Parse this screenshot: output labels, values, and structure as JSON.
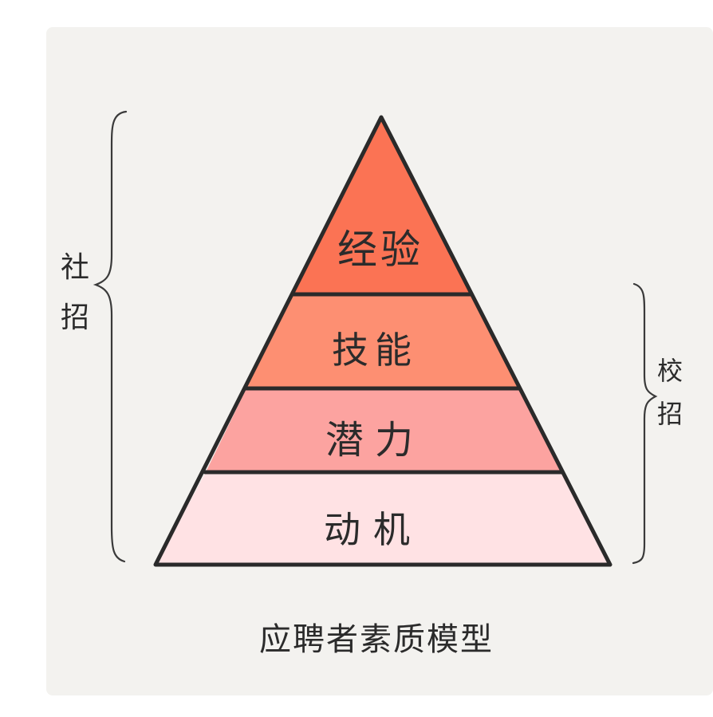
{
  "pyramid": {
    "levels": [
      {
        "label": "经验",
        "color": "#fb7354"
      },
      {
        "label": "技能",
        "color": "#fd8f72"
      },
      {
        "label": "潜力",
        "color": "#fca3a0"
      },
      {
        "label": "动机",
        "color": "#ffe2e4"
      }
    ]
  },
  "brackets": {
    "left_label_chars": [
      "社",
      "招"
    ],
    "right_label_chars": [
      "校",
      "招"
    ]
  },
  "caption": "应聘者素质模型"
}
